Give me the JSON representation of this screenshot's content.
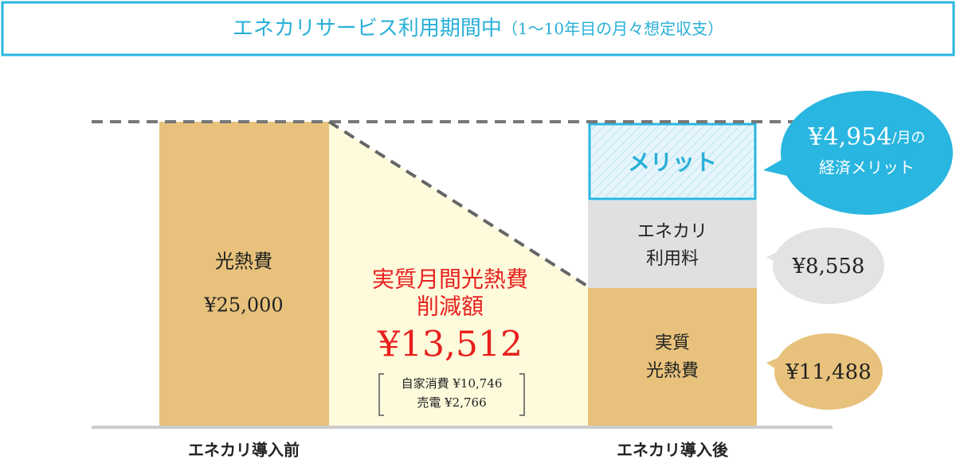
{
  "header": {
    "title": "エネカリサービス利用期間中",
    "subtitle": "（1〜10年目の月々想定収支）"
  },
  "before": {
    "label": "エネカリ導入前",
    "bar_label": "光熱費",
    "amount": "¥25,000"
  },
  "reduction": {
    "title_lines": [
      "実質月間光熱費",
      "削減額"
    ],
    "amount": "¥13,512",
    "breakdown": [
      {
        "label": "自家消費",
        "amount": "¥10,746"
      },
      {
        "label": "売電",
        "amount": "¥2,766"
      }
    ]
  },
  "after": {
    "label": "エネカリ導入後",
    "merit": "メリット",
    "fee_lines": [
      "エネカリ",
      "利用料"
    ],
    "cost_lines": [
      "実質",
      "光熱費"
    ]
  },
  "bubbles": {
    "merit": {
      "amount": "¥4,954",
      "unit": "/月の",
      "text": "経済メリット"
    },
    "fee": "¥8,558",
    "cost": "¥11,488"
  }
}
